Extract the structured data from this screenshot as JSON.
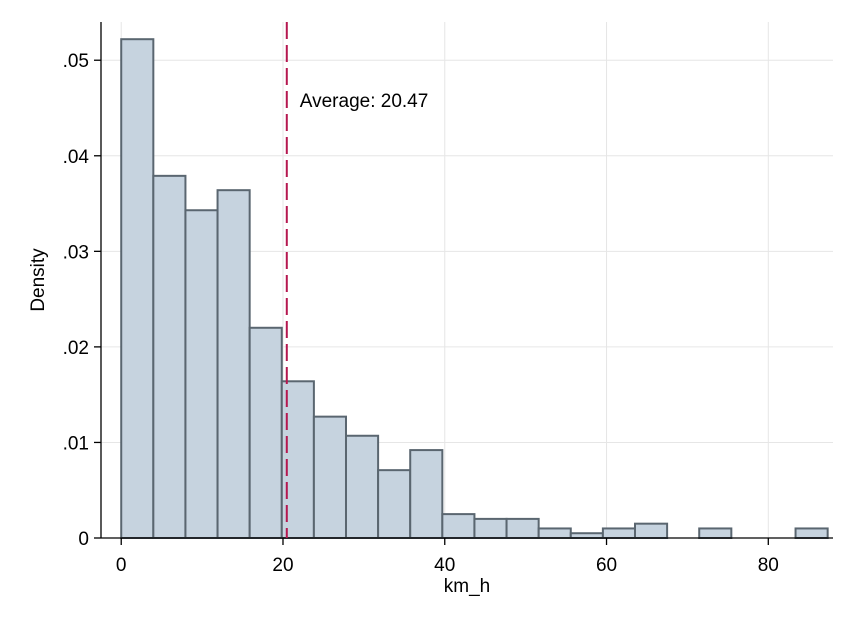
{
  "chart_data": {
    "type": "histogram",
    "title": "",
    "xlabel": "km_h",
    "ylabel": "Density",
    "xlim": [
      -2.5,
      88
    ],
    "ylim": [
      0,
      0.054
    ],
    "xticks": [
      0,
      20,
      40,
      60,
      80
    ],
    "xtick_labels": [
      "0",
      "20",
      "40",
      "60",
      "80"
    ],
    "yticks": [
      0,
      0.01,
      0.02,
      0.03,
      0.04,
      0.05
    ],
    "ytick_labels": [
      "0",
      ".01",
      ".02",
      ".03",
      ".04",
      ".05"
    ],
    "grid": true,
    "bin_width": 3.97,
    "bins": [
      {
        "x0": 0.0,
        "x1": 3.97,
        "density": 0.0522
      },
      {
        "x0": 3.97,
        "x1": 7.94,
        "density": 0.0379
      },
      {
        "x0": 7.94,
        "x1": 11.91,
        "density": 0.0343
      },
      {
        "x0": 11.91,
        "x1": 15.88,
        "density": 0.0364
      },
      {
        "x0": 15.88,
        "x1": 19.85,
        "density": 0.022
      },
      {
        "x0": 19.85,
        "x1": 23.82,
        "density": 0.0164
      },
      {
        "x0": 23.82,
        "x1": 27.79,
        "density": 0.0127
      },
      {
        "x0": 27.79,
        "x1": 31.76,
        "density": 0.0107
      },
      {
        "x0": 31.76,
        "x1": 35.73,
        "density": 0.0071
      },
      {
        "x0": 35.73,
        "x1": 39.7,
        "density": 0.0092
      },
      {
        "x0": 39.7,
        "x1": 43.67,
        "density": 0.0025
      },
      {
        "x0": 43.67,
        "x1": 47.64,
        "density": 0.002
      },
      {
        "x0": 47.64,
        "x1": 51.61,
        "density": 0.002
      },
      {
        "x0": 51.61,
        "x1": 55.58,
        "density": 0.001
      },
      {
        "x0": 55.58,
        "x1": 59.55,
        "density": 0.0005
      },
      {
        "x0": 59.55,
        "x1": 63.52,
        "density": 0.001
      },
      {
        "x0": 63.52,
        "x1": 67.49,
        "density": 0.0015
      },
      {
        "x0": 71.46,
        "x1": 75.43,
        "density": 0.001
      },
      {
        "x0": 83.37,
        "x1": 87.34,
        "density": 0.001
      }
    ],
    "reference_line": {
      "x": 20.47,
      "label": "Average: 20.47",
      "style": "dashed"
    },
    "colors": {
      "bar_fill": "#c6d3df",
      "bar_stroke": "#5a6670",
      "reference_line": "#b5174f",
      "grid": "#e6e6e6",
      "axis": "#000000"
    }
  }
}
